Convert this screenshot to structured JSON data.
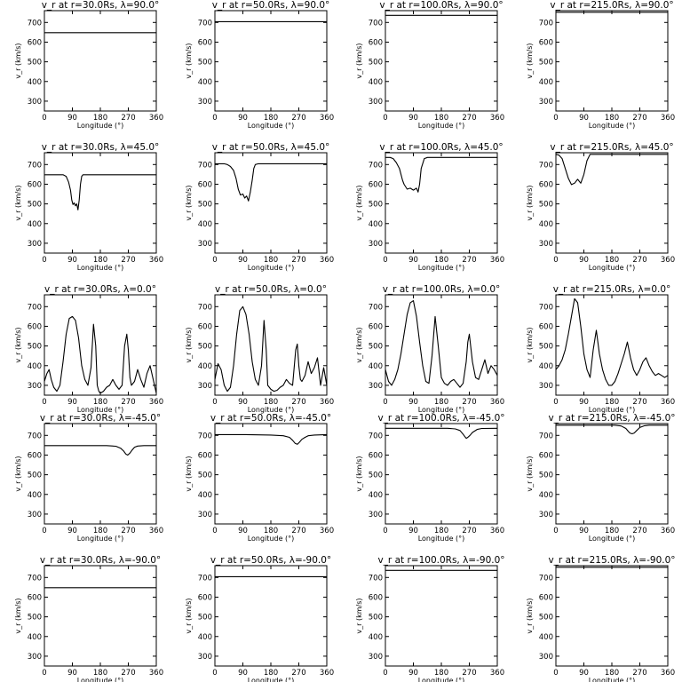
{
  "chart_data": {
    "type": "line",
    "xlabel": "Longitude (°)",
    "ylabel": "v_r (km/s)",
    "xlim": [
      0,
      360
    ],
    "ylim": [
      250,
      760
    ],
    "xticks": [
      "0",
      "90",
      "180",
      "270",
      "360"
    ],
    "yticks": [
      "300",
      "400",
      "500",
      "600",
      "700"
    ],
    "grid": false,
    "panels": [
      {
        "title": "v_r at r=30.0Rs, λ=90.0°",
        "x": [
          0,
          360
        ],
        "y": [
          648,
          648
        ]
      },
      {
        "title": "v_r at r=50.0Rs, λ=90.0°",
        "x": [
          0,
          360
        ],
        "y": [
          704,
          704
        ]
      },
      {
        "title": "v_r at r=100.0Rs, λ=90.0°",
        "x": [
          0,
          360
        ],
        "y": [
          736,
          736
        ]
      },
      {
        "title": "v_r at r=215.0Rs, λ=90.0°",
        "x": [
          0,
          360
        ],
        "y": [
          752,
          752
        ]
      },
      {
        "title": "v_r at r=30.0Rs, λ=45.0°",
        "x": [
          0,
          60,
          70,
          78,
          84,
          88,
          92,
          96,
          100,
          104,
          108,
          112,
          116,
          120,
          124,
          130,
          140,
          360
        ],
        "y": [
          648,
          648,
          640,
          610,
          570,
          520,
          497,
          505,
          490,
          500,
          470,
          520,
          600,
          640,
          648,
          648,
          648,
          648
        ]
      },
      {
        "title": "v_r at r=50.0Rs, λ=45.0°",
        "x": [
          0,
          30,
          40,
          50,
          60,
          68,
          75,
          82,
          90,
          96,
          102,
          108,
          114,
          120,
          125,
          130,
          140,
          360
        ],
        "y": [
          704,
          704,
          700,
          690,
          670,
          630,
          575,
          545,
          550,
          530,
          540,
          515,
          560,
          620,
          680,
          700,
          704,
          704
        ],
        "note": "dip region between ~40 and ~135"
      },
      {
        "title": "v_r at r=100.0Rs, λ=45.0°",
        "x": [
          0,
          15,
          25,
          35,
          45,
          55,
          60,
          70,
          80,
          90,
          100,
          105,
          110,
          115,
          125,
          135,
          360
        ],
        "y": [
          736,
          736,
          730,
          710,
          680,
          620,
          600,
          575,
          580,
          570,
          580,
          560,
          600,
          680,
          730,
          736,
          736
        ]
      },
      {
        "title": "v_r at r=215.0Rs, λ=45.0°",
        "x": [
          0,
          10,
          20,
          30,
          40,
          50,
          60,
          70,
          80,
          90,
          100,
          110,
          360
        ],
        "y": [
          752,
          748,
          730,
          680,
          630,
          598,
          605,
          625,
          605,
          650,
          720,
          752,
          752
        ]
      },
      {
        "title": "v_r at r=30.0Rs, λ=0.0°",
        "x": [
          0,
          8,
          15,
          22,
          30,
          40,
          50,
          60,
          70,
          80,
          90,
          100,
          110,
          120,
          130,
          140,
          150,
          158,
          165,
          170,
          175,
          180,
          190,
          200,
          210,
          220,
          230,
          240,
          250,
          258,
          265,
          270,
          275,
          280,
          290,
          300,
          310,
          320,
          330,
          340,
          350,
          360
        ],
        "y": [
          320,
          360,
          380,
          330,
          290,
          270,
          300,
          420,
          560,
          640,
          650,
          630,
          540,
          400,
          330,
          300,
          390,
          610,
          500,
          300,
          270,
          260,
          270,
          290,
          300,
          330,
          300,
          280,
          300,
          500,
          560,
          480,
          340,
          300,
          320,
          380,
          330,
          290,
          360,
          400,
          330,
          260
        ]
      },
      {
        "title": "v_r at r=50.0Rs, λ=0.0°",
        "x": [
          0,
          10,
          20,
          30,
          40,
          50,
          60,
          70,
          80,
          90,
          100,
          110,
          120,
          130,
          140,
          150,
          158,
          165,
          170,
          180,
          190,
          200,
          210,
          220,
          230,
          240,
          250,
          260,
          265,
          270,
          275,
          280,
          290,
          300,
          310,
          320,
          330,
          340,
          350,
          360
        ],
        "y": [
          330,
          410,
          380,
          300,
          270,
          290,
          400,
          560,
          680,
          700,
          660,
          560,
          420,
          330,
          300,
          400,
          630,
          480,
          300,
          280,
          270,
          275,
          290,
          300,
          330,
          310,
          300,
          480,
          510,
          400,
          330,
          320,
          350,
          420,
          360,
          390,
          440,
          300,
          390,
          300
        ]
      },
      {
        "title": "v_r at r=100.0Rs, λ=0.0°",
        "x": [
          0,
          10,
          20,
          30,
          40,
          50,
          60,
          70,
          80,
          90,
          100,
          110,
          120,
          130,
          140,
          150,
          160,
          170,
          180,
          190,
          200,
          210,
          220,
          230,
          240,
          250,
          260,
          265,
          270,
          280,
          290,
          300,
          310,
          320,
          330,
          340,
          350,
          360
        ],
        "y": [
          380,
          320,
          300,
          330,
          380,
          460,
          560,
          660,
          720,
          730,
          650,
          520,
          400,
          320,
          310,
          450,
          650,
          500,
          340,
          310,
          300,
          320,
          330,
          310,
          290,
          310,
          420,
          520,
          560,
          420,
          340,
          330,
          380,
          430,
          360,
          400,
          380,
          350
        ]
      },
      {
        "title": "v_r at r=215.0Rs, λ=0.0°",
        "x": [
          0,
          10,
          20,
          30,
          40,
          50,
          60,
          70,
          80,
          90,
          100,
          110,
          120,
          130,
          140,
          150,
          160,
          170,
          180,
          190,
          200,
          210,
          220,
          230,
          240,
          250,
          260,
          270,
          280,
          290,
          300,
          310,
          320,
          330,
          340,
          350,
          360
        ],
        "y": [
          380,
          400,
          430,
          480,
          560,
          650,
          740,
          720,
          600,
          460,
          380,
          340,
          480,
          580,
          460,
          380,
          330,
          300,
          300,
          320,
          360,
          410,
          460,
          520,
          440,
          380,
          350,
          380,
          420,
          440,
          400,
          370,
          350,
          360,
          350,
          340,
          350
        ]
      },
      {
        "title": "v_r at r=30.0Rs, λ=-45.0°",
        "x": [
          0,
          200,
          230,
          245,
          255,
          262,
          268,
          275,
          282,
          290,
          300,
          320,
          360
        ],
        "y": [
          648,
          648,
          645,
          635,
          620,
          605,
          600,
          610,
          625,
          640,
          646,
          648,
          648
        ]
      },
      {
        "title": "v_r at r=50.0Rs, λ=-45.0°",
        "x": [
          0,
          100,
          180,
          220,
          240,
          250,
          258,
          265,
          272,
          280,
          290,
          300,
          320,
          360
        ],
        "y": [
          704,
          704,
          702,
          698,
          690,
          675,
          660,
          655,
          665,
          680,
          690,
          698,
          702,
          704
        ]
      },
      {
        "title": "v_r at r=100.0Rs, λ=-45.0°",
        "x": [
          0,
          200,
          225,
          240,
          248,
          255,
          260,
          265,
          272,
          280,
          295,
          310,
          360
        ],
        "y": [
          736,
          736,
          733,
          725,
          710,
          695,
          685,
          690,
          700,
          715,
          730,
          735,
          736
        ]
      },
      {
        "title": "v_r at r=215.0Rs, λ=-45.0°",
        "x": [
          0,
          190,
          210,
          225,
          232,
          238,
          245,
          252,
          260,
          270,
          285,
          300,
          360
        ],
        "y": [
          752,
          752,
          748,
          735,
          722,
          712,
          708,
          712,
          725,
          740,
          749,
          752,
          752
        ]
      },
      {
        "title": "v_r at r=30.0Rs, λ=-90.0°",
        "x": [
          0,
          360
        ],
        "y": [
          648,
          648
        ]
      },
      {
        "title": "v_r at r=50.0Rs, λ=-90.0°",
        "x": [
          0,
          360
        ],
        "y": [
          704,
          704
        ]
      },
      {
        "title": "v_r at r=100.0Rs, λ=-90.0°",
        "x": [
          0,
          360
        ],
        "y": [
          736,
          736
        ]
      },
      {
        "title": "v_r at r=215.0Rs, λ=-90.0°",
        "x": [
          0,
          360
        ],
        "y": [
          752,
          752
        ]
      }
    ]
  }
}
